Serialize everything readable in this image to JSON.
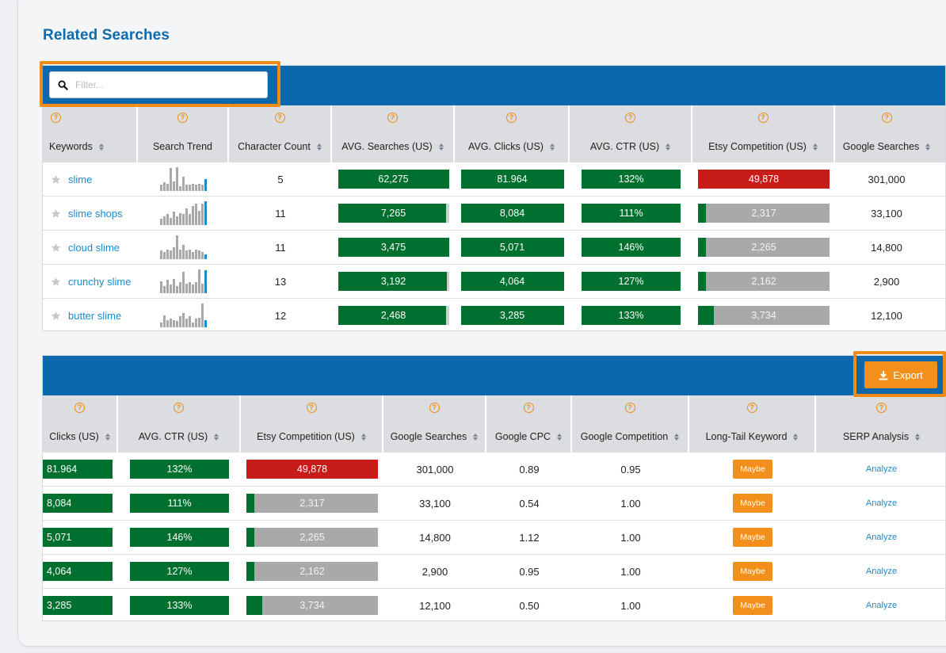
{
  "page": {
    "title": "Related Searches"
  },
  "filter": {
    "placeholder": "Filter..."
  },
  "export": {
    "label": "Export"
  },
  "help_glyph": "?",
  "colors": {
    "accent_blue": "#0b68ad",
    "title_blue": "#0f6aab",
    "orange": "#f3901c",
    "green": "#00702f",
    "red": "#c81c19",
    "gray": "#a9a9a9",
    "link": "#1a8ccc"
  },
  "top_table": {
    "headers": [
      "Keywords",
      "Search Trend",
      "Character Count",
      "AVG. Searches (US)",
      "AVG. Clicks (US)",
      "AVG. CTR (US)",
      "Etsy Competition (US)",
      "Google Searches"
    ],
    "rows": [
      {
        "keyword": "slime",
        "trend": [
          0.25,
          0.35,
          0.3,
          0.95,
          0.4,
          1.0,
          0.2,
          0.6,
          0.25,
          0.25,
          0.3,
          0.25,
          0.3,
          0.25,
          0.5
        ],
        "char_count": "5",
        "avg_searches": "62,275",
        "searches_fill": 1.0,
        "avg_clicks": "81.964",
        "avg_ctr": "132%",
        "etsy_comp": "49,878",
        "etsy_fill": 1.0,
        "etsy_level": "high",
        "google_searches": "301,000"
      },
      {
        "keyword": "slime shops",
        "trend": [
          0.25,
          0.35,
          0.45,
          0.3,
          0.55,
          0.35,
          0.5,
          0.45,
          0.7,
          0.45,
          0.8,
          0.9,
          0.6,
          0.9,
          1.0
        ],
        "char_count": "11",
        "avg_searches": "7,265",
        "searches_fill": 0.97,
        "avg_clicks": "8,084",
        "avg_ctr": "111%",
        "etsy_comp": "2,317",
        "etsy_fill": 0.06,
        "etsy_level": "low",
        "google_searches": "33,100"
      },
      {
        "keyword": "cloud slime",
        "trend": [
          0.35,
          0.3,
          0.4,
          0.35,
          0.5,
          1.0,
          0.4,
          0.6,
          0.35,
          0.4,
          0.3,
          0.4,
          0.35,
          0.3,
          0.2
        ],
        "char_count": "11",
        "avg_searches": "3,475",
        "searches_fill": 1.0,
        "avg_clicks": "5,071",
        "avg_ctr": "146%",
        "etsy_comp": "2,265",
        "etsy_fill": 0.06,
        "etsy_level": "low",
        "google_searches": "14,800"
      },
      {
        "keyword": "crunchy slime",
        "trend": [
          0.5,
          0.3,
          0.55,
          0.35,
          0.6,
          0.3,
          0.45,
          0.9,
          0.4,
          0.45,
          0.35,
          0.45,
          1.0,
          0.4,
          0.95
        ],
        "char_count": "13",
        "avg_searches": "3,192",
        "searches_fill": 0.98,
        "avg_clicks": "4,064",
        "avg_ctr": "127%",
        "etsy_comp": "2,162",
        "etsy_fill": 0.06,
        "etsy_level": "low",
        "google_searches": "2,900"
      },
      {
        "keyword": "butter slime",
        "trend": [
          0.2,
          0.5,
          0.3,
          0.35,
          0.3,
          0.25,
          0.45,
          0.6,
          0.35,
          0.45,
          0.2,
          0.35,
          0.4,
          1.0,
          0.3
        ],
        "char_count": "12",
        "avg_searches": "2,468",
        "searches_fill": 0.97,
        "avg_clicks": "3,285",
        "avg_ctr": "133%",
        "etsy_comp": "3,734",
        "etsy_fill": 0.12,
        "etsy_level": "low",
        "google_searches": "12,100"
      }
    ]
  },
  "bottom_table": {
    "headers": [
      "Clicks (US)",
      "AVG. CTR (US)",
      "Etsy Competition (US)",
      "Google Searches",
      "Google CPC",
      "Google Competition",
      "Long-Tail Keyword",
      "SERP Analysis"
    ],
    "rows": [
      {
        "clicks": "81.964",
        "ctr": "132%",
        "etsy_comp": "49,878",
        "etsy_fill": 1.0,
        "etsy_level": "high",
        "google_searches": "301,000",
        "cpc": "0.89",
        "competition": "0.95",
        "long_tail": "Maybe",
        "serp": "Analyze"
      },
      {
        "clicks": "8,084",
        "ctr": "111%",
        "etsy_comp": "2,317",
        "etsy_fill": 0.06,
        "etsy_level": "low",
        "google_searches": "33,100",
        "cpc": "0.54",
        "competition": "1.00",
        "long_tail": "Maybe",
        "serp": "Analyze"
      },
      {
        "clicks": "5,071",
        "ctr": "146%",
        "etsy_comp": "2,265",
        "etsy_fill": 0.06,
        "etsy_level": "low",
        "google_searches": "14,800",
        "cpc": "1.12",
        "competition": "1.00",
        "long_tail": "Maybe",
        "serp": "Analyze"
      },
      {
        "clicks": "4,064",
        "ctr": "127%",
        "etsy_comp": "2,162",
        "etsy_fill": 0.06,
        "etsy_level": "low",
        "google_searches": "2,900",
        "cpc": "0.95",
        "competition": "1.00",
        "long_tail": "Maybe",
        "serp": "Analyze"
      },
      {
        "clicks": "3,285",
        "ctr": "133%",
        "etsy_comp": "3,734",
        "etsy_fill": 0.12,
        "etsy_level": "low",
        "google_searches": "12,100",
        "cpc": "0.50",
        "competition": "1.00",
        "long_tail": "Maybe",
        "serp": "Analyze"
      }
    ]
  }
}
